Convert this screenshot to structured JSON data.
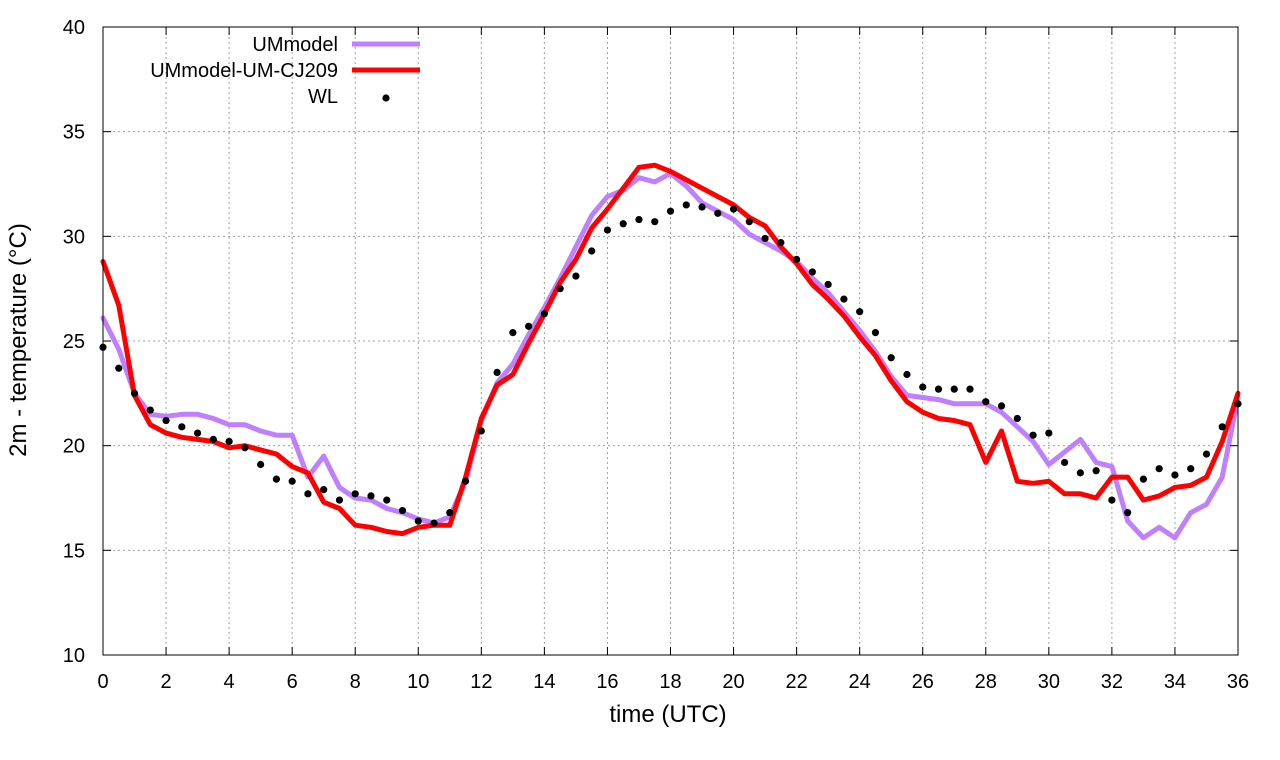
{
  "chart_data": {
    "type": "line",
    "title": "",
    "xlabel": "time (UTC)",
    "ylabel": "2m - temperature (°C)",
    "xlim": [
      0,
      36
    ],
    "ylim": [
      10,
      40
    ],
    "xticks": [
      0,
      2,
      4,
      6,
      8,
      10,
      12,
      14,
      16,
      18,
      20,
      22,
      24,
      26,
      28,
      30,
      32,
      34,
      36
    ],
    "yticks": [
      10,
      15,
      20,
      25,
      30,
      35,
      40
    ],
    "grid": true,
    "legend_position": "top-left",
    "series": [
      {
        "name": "UMmodel",
        "style": "line",
        "color": "#bf7fff",
        "x": [
          0,
          0.5,
          1,
          1.5,
          2,
          2.5,
          3,
          3.5,
          4,
          4.5,
          5,
          5.5,
          6,
          6.5,
          7,
          7.5,
          8,
          8.5,
          9,
          9.5,
          10,
          10.5,
          11,
          11.5,
          12,
          12.5,
          13,
          13.5,
          14,
          14.5,
          15,
          15.5,
          16,
          16.5,
          17,
          17.5,
          18,
          18.5,
          19,
          19.5,
          20,
          20.5,
          21,
          21.5,
          22,
          22.5,
          23,
          23.5,
          24,
          24.5,
          25,
          25.5,
          26,
          26.5,
          27,
          27.5,
          28,
          28.5,
          29,
          29.5,
          30,
          30.5,
          31,
          31.5,
          32,
          32.5,
          33,
          33.5,
          34,
          34.5,
          35,
          35.5,
          36
        ],
        "y": [
          26.1,
          24.6,
          22.5,
          21.5,
          21.4,
          21.5,
          21.5,
          21.3,
          21.0,
          21.0,
          20.7,
          20.5,
          20.5,
          18.5,
          19.5,
          18.0,
          17.5,
          17.4,
          17.0,
          16.8,
          16.5,
          16.3,
          16.6,
          18.3,
          21.2,
          23.0,
          23.9,
          25.3,
          26.6,
          28.0,
          29.5,
          31.0,
          31.9,
          32.2,
          32.8,
          32.6,
          33.0,
          32.4,
          31.6,
          31.2,
          30.8,
          30.1,
          29.7,
          29.3,
          28.8,
          28.0,
          27.3,
          26.4,
          25.5,
          24.5,
          23.3,
          22.4,
          22.3,
          22.2,
          22.0,
          22.0,
          22.0,
          21.6,
          20.9,
          20.2,
          19.1,
          19.7,
          20.3,
          19.2,
          19.0,
          16.4,
          15.6,
          16.1,
          15.6,
          16.8,
          17.2,
          18.5,
          22.3
        ]
      },
      {
        "name": "UMmodel-UM-CJ209",
        "style": "line",
        "color": "#ff0000",
        "x": [
          0,
          0.5,
          1,
          1.5,
          2,
          2.5,
          3,
          3.5,
          4,
          4.5,
          5,
          5.5,
          6,
          6.5,
          7,
          7.5,
          8,
          8.5,
          9,
          9.5,
          10,
          10.5,
          11,
          11.5,
          12,
          12.5,
          13,
          13.5,
          14,
          14.5,
          15,
          15.5,
          16,
          16.5,
          17,
          17.5,
          18,
          18.5,
          19,
          19.5,
          20,
          20.5,
          21,
          21.5,
          22,
          22.5,
          23,
          23.5,
          24,
          24.5,
          25,
          25.5,
          26,
          26.5,
          27,
          27.5,
          28,
          28.5,
          29,
          29.5,
          30,
          30.5,
          31,
          31.5,
          32,
          32.5,
          33,
          33.5,
          34,
          34.5,
          35,
          35.5,
          36
        ],
        "y": [
          28.8,
          26.7,
          22.4,
          21.0,
          20.6,
          20.4,
          20.3,
          20.2,
          19.9,
          20.0,
          19.8,
          19.6,
          19.0,
          18.7,
          17.3,
          17.0,
          16.2,
          16.1,
          15.9,
          15.8,
          16.1,
          16.2,
          16.2,
          18.5,
          21.3,
          22.9,
          23.4,
          24.9,
          26.3,
          27.8,
          28.9,
          30.4,
          31.3,
          32.3,
          33.3,
          33.4,
          33.1,
          32.7,
          32.3,
          31.9,
          31.5,
          30.9,
          30.5,
          29.5,
          28.7,
          27.7,
          27.0,
          26.2,
          25.2,
          24.3,
          23.1,
          22.1,
          21.6,
          21.3,
          21.2,
          21.0,
          19.2,
          20.7,
          18.3,
          18.2,
          18.3,
          17.7,
          17.7,
          17.5,
          18.5,
          18.5,
          17.4,
          17.6,
          18.0,
          18.1,
          18.5,
          20.2,
          22.5
        ]
      },
      {
        "name": "WL",
        "style": "points",
        "color": "#000000",
        "x": [
          0,
          0.5,
          1,
          1.5,
          2,
          2.5,
          3,
          3.5,
          4,
          4.5,
          5,
          5.5,
          6,
          6.5,
          7,
          7.5,
          8,
          8.5,
          9,
          9.5,
          10,
          10.5,
          11,
          11.5,
          12,
          12.5,
          13,
          13.5,
          14,
          14.5,
          15,
          15.5,
          16,
          16.5,
          17,
          17.5,
          18,
          18.5,
          19,
          19.5,
          20,
          20.5,
          21,
          21.5,
          22,
          22.5,
          23,
          23.5,
          24,
          24.5,
          25,
          25.5,
          26,
          26.5,
          27,
          27.5,
          28,
          28.5,
          29,
          29.5,
          30,
          30.5,
          31,
          31.5,
          32,
          32.5,
          33,
          33.5,
          34,
          34.5,
          35,
          35.5,
          36
        ],
        "y": [
          24.7,
          23.7,
          22.5,
          21.7,
          21.2,
          20.9,
          20.6,
          20.3,
          20.2,
          19.9,
          19.1,
          18.4,
          18.3,
          17.7,
          17.9,
          17.4,
          17.7,
          17.6,
          17.4,
          16.9,
          16.4,
          16.3,
          16.8,
          18.3,
          20.7,
          23.5,
          25.4,
          25.7,
          26.3,
          27.5,
          28.1,
          29.3,
          30.3,
          30.6,
          30.8,
          30.7,
          31.2,
          31.5,
          31.4,
          31.1,
          31.3,
          30.7,
          29.9,
          29.7,
          28.9,
          28.3,
          27.7,
          27.0,
          26.4,
          25.4,
          24.2,
          23.4,
          22.8,
          22.7,
          22.7,
          22.7,
          22.1,
          21.9,
          21.3,
          20.5,
          20.6,
          19.2,
          18.7,
          18.8,
          17.4,
          16.8,
          18.4,
          18.9,
          18.6,
          18.9,
          19.6,
          20.9,
          22.0
        ]
      }
    ]
  }
}
